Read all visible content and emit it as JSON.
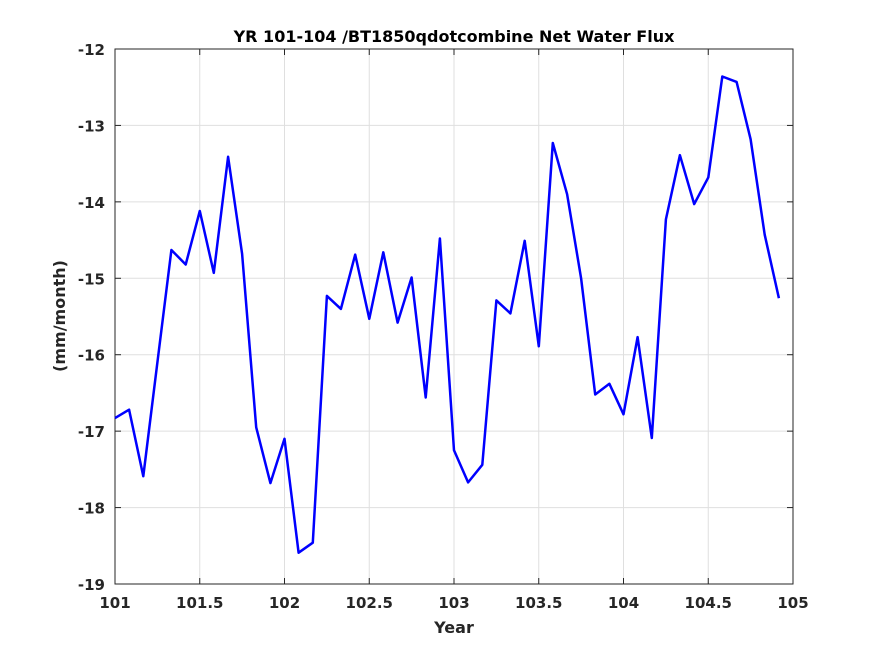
{
  "chart_data": {
    "type": "line",
    "title": "YR 101-104 /BT1850qdotcombine Net Water Flux",
    "xlabel": "Year",
    "ylabel": "(mm/month)",
    "xlim": [
      101,
      105
    ],
    "ylim": [
      -19,
      -12
    ],
    "grid": true,
    "x_ticks": [
      101,
      101.5,
      102,
      102.5,
      103,
      103.5,
      104,
      104.5,
      105
    ],
    "x_tick_labels": [
      "101",
      "101.5",
      "102",
      "102.5",
      "103",
      "103.5",
      "104",
      "104.5",
      "105"
    ],
    "y_ticks": [
      -19,
      -18,
      -17,
      -16,
      -15,
      -14,
      -13,
      -12
    ],
    "y_tick_labels": [
      "-19",
      "-18",
      "-17",
      "-16",
      "-15",
      "-14",
      "-13",
      "-12"
    ],
    "line_color": "#0000ff",
    "series": [
      {
        "x": [
          101.0,
          101.083,
          101.167,
          101.25,
          101.333,
          101.417,
          101.5,
          101.583,
          101.667,
          101.75,
          101.833,
          101.917,
          102.0,
          102.083,
          102.167,
          102.25,
          102.333,
          102.417,
          102.5,
          102.583,
          102.667,
          102.75,
          102.833,
          102.917,
          103.0,
          103.083,
          103.167,
          103.25,
          103.333,
          103.417,
          103.5,
          103.583,
          103.667,
          103.75,
          103.833,
          103.917,
          104.0,
          104.083,
          104.167,
          104.25,
          104.333,
          104.417,
          104.5,
          104.583,
          104.667,
          104.75,
          104.833,
          104.917
        ],
        "y": [
          -16.83,
          -16.72,
          -17.59,
          -16.1,
          -14.63,
          -14.82,
          -14.12,
          -14.93,
          -13.41,
          -14.68,
          -16.95,
          -17.68,
          -17.1,
          -18.59,
          -18.46,
          -15.23,
          -15.4,
          -14.69,
          -15.53,
          -14.66,
          -15.58,
          -14.99,
          -16.56,
          -14.48,
          -17.25,
          -17.67,
          -17.44,
          -15.29,
          -15.46,
          -14.51,
          -15.89,
          -13.23,
          -13.9,
          -15.0,
          -16.52,
          -16.38,
          -16.78,
          -15.77,
          -17.09,
          -14.23,
          -13.39,
          -14.03,
          -13.68,
          -12.36,
          -12.43,
          -13.18,
          -14.43,
          -15.26
        ]
      }
    ]
  }
}
